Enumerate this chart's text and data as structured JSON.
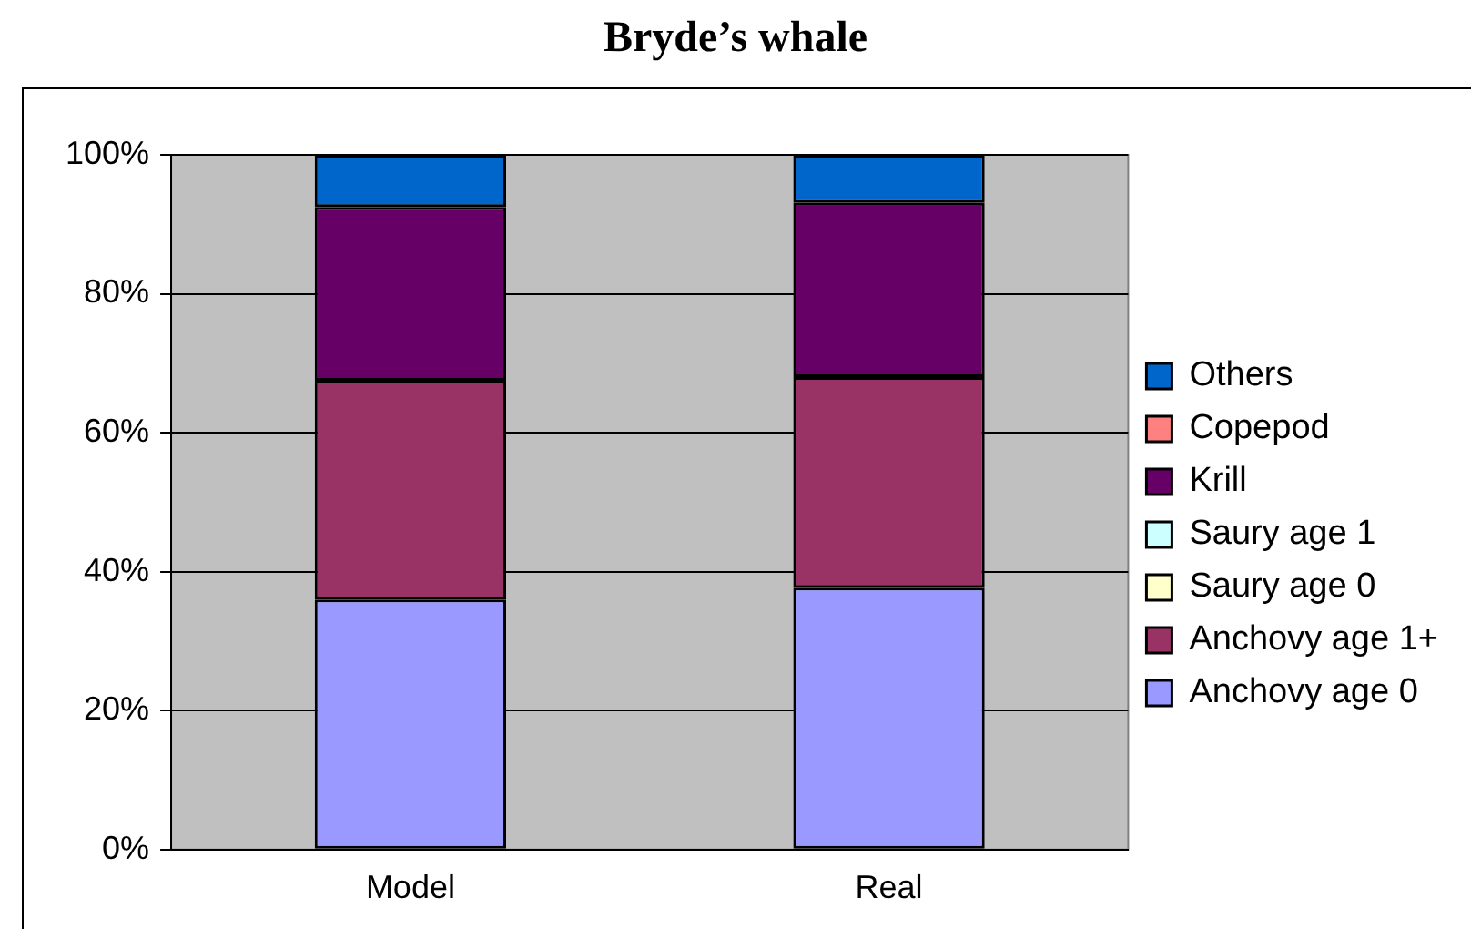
{
  "chart_data": {
    "type": "bar",
    "title": "Bryde’s whale",
    "categories": [
      "Model",
      "Real"
    ],
    "stacked": true,
    "series": [
      {
        "name": "Anchovy age 0",
        "color": "#9999ff",
        "values": [
          36,
          37.7
        ]
      },
      {
        "name": "Anchovy age 1+",
        "color": "#993366",
        "values": [
          31.5,
          30.3
        ]
      },
      {
        "name": "Saury age 0",
        "color": "#ffffcc",
        "values": [
          0,
          0
        ]
      },
      {
        "name": "Saury age 1",
        "color": "#ccffff",
        "values": [
          0,
          0
        ]
      },
      {
        "name": "Krill",
        "color": "#660066",
        "values": [
          25,
          25.1
        ]
      },
      {
        "name": "Copepod",
        "color": "#ff8080",
        "values": [
          0,
          0
        ]
      },
      {
        "name": "Others",
        "color": "#0066cc",
        "values": [
          7.5,
          6.9
        ]
      }
    ],
    "ylim": [
      0,
      100
    ],
    "yticks": [
      {
        "value": 0,
        "label": "0%"
      },
      {
        "value": 20,
        "label": "20%"
      },
      {
        "value": 40,
        "label": "40%"
      },
      {
        "value": 60,
        "label": "60%"
      },
      {
        "value": 80,
        "label": "80%"
      },
      {
        "value": 100,
        "label": "100%"
      }
    ],
    "grid": "y",
    "legend": "right"
  }
}
